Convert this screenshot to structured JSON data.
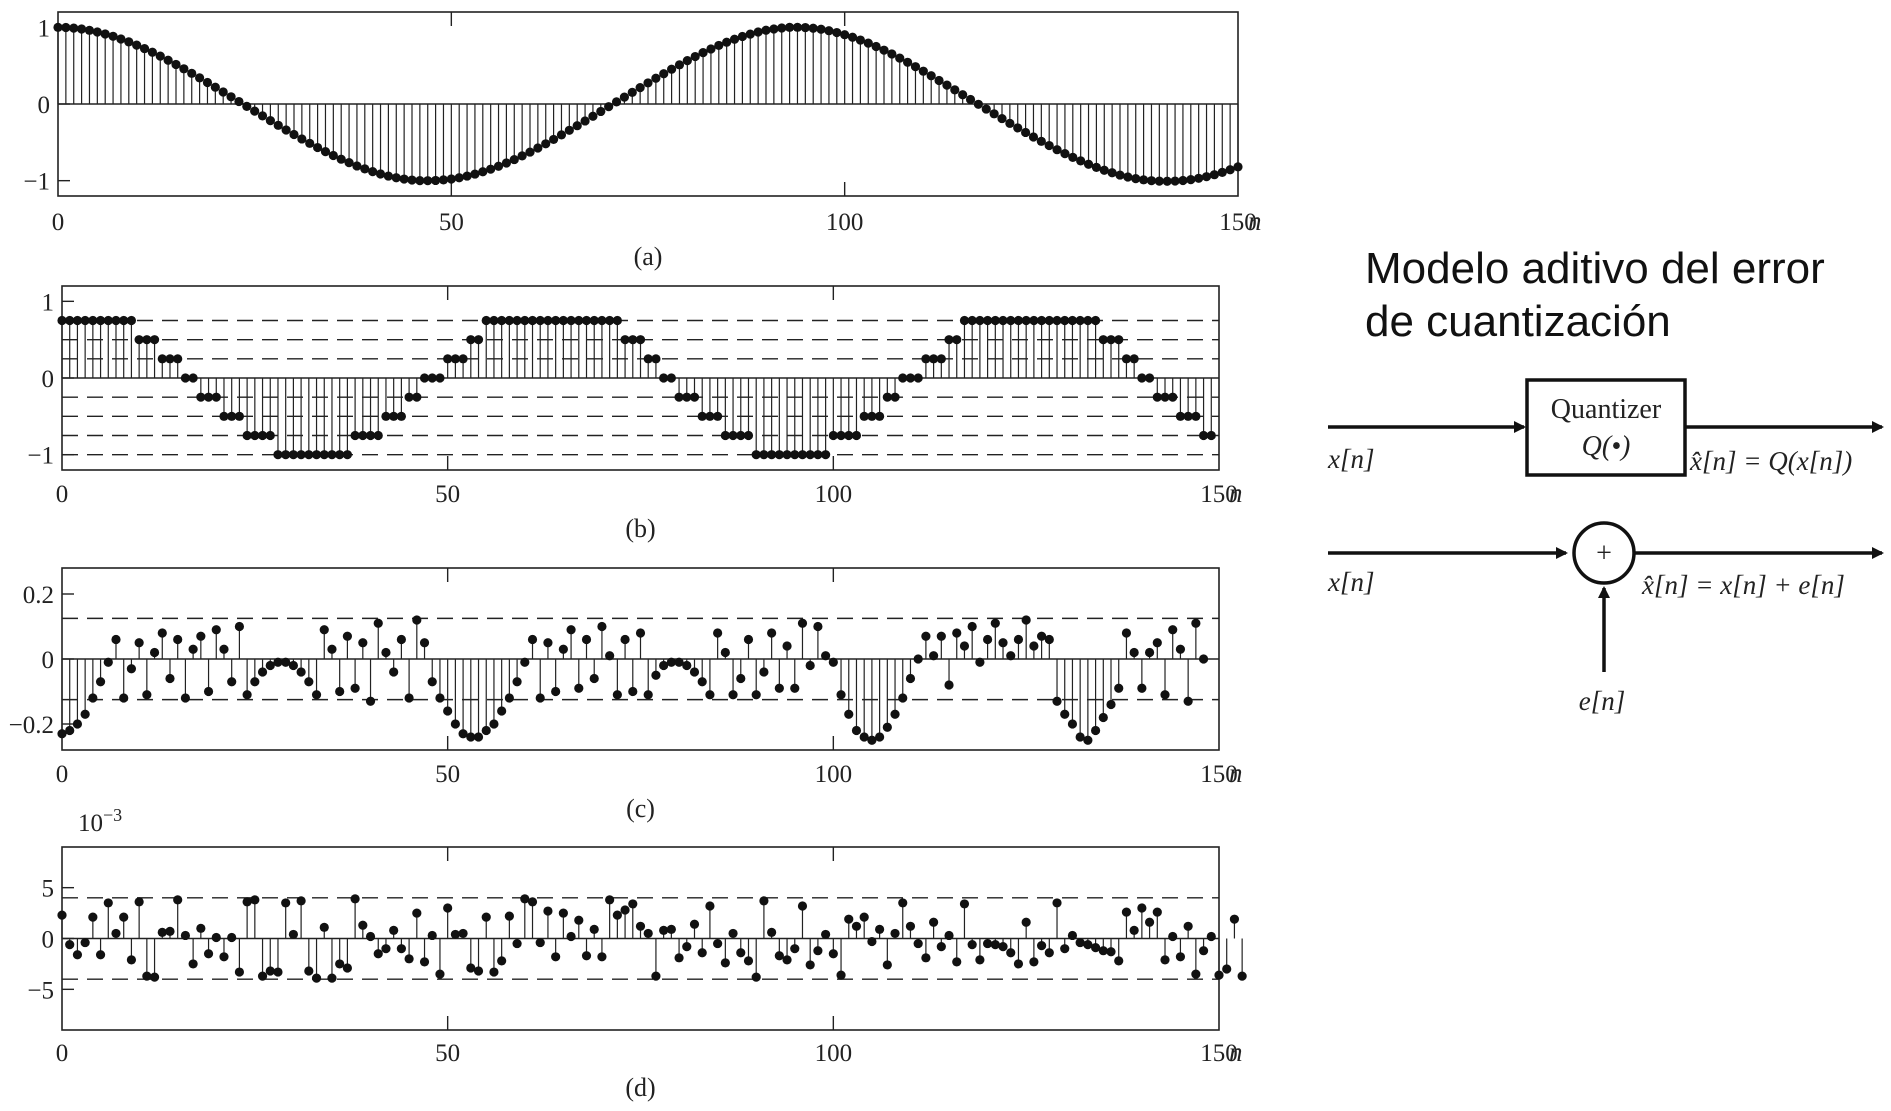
{
  "chart_data": [
    {
      "id": "a",
      "type": "stem",
      "caption": "(a)",
      "xlabel": "n",
      "xlim": [
        0,
        150
      ],
      "ylim": [
        -1.2,
        1.2
      ],
      "xticks": [
        "0",
        "50",
        "100",
        "150"
      ],
      "yticks": [
        {
          "v": 1,
          "label": "1"
        },
        {
          "v": 0,
          "label": "0"
        },
        {
          "v": -1,
          "label": "−1"
        }
      ],
      "dashed_lines": [],
      "exponent_label": "",
      "series": [
        {
          "x_start": 0,
          "values": [
            1,
            0.998,
            0.99,
            0.978,
            0.961,
            0.939,
            0.913,
            0.883,
            0.848,
            0.81,
            0.768,
            0.723,
            0.675,
            0.624,
            0.571,
            0.516,
            0.459,
            0.4,
            0.341,
            0.28,
            0.219,
            0.157,
            0.094,
            0.032,
            -0.031,
            -0.093,
            -0.155,
            -0.217,
            -0.278,
            -0.339,
            -0.398,
            -0.456,
            -0.513,
            -0.568,
            -0.621,
            -0.672,
            -0.72,
            -0.765,
            -0.808,
            -0.846,
            -0.882,
            -0.913,
            -0.94,
            -0.962,
            -0.979,
            -0.992,
            -0.999,
            -1,
            -0.997,
            -0.99,
            -0.978,
            -0.962,
            -0.94,
            -0.914,
            -0.884,
            -0.85,
            -0.812,
            -0.77,
            -0.725,
            -0.677,
            -0.627,
            -0.574,
            -0.519,
            -0.462,
            -0.403,
            -0.343,
            -0.283,
            -0.221,
            -0.16,
            -0.097,
            -0.035,
            0.028,
            0.09,
            0.152,
            0.214,
            0.275,
            0.336,
            0.395,
            0.454,
            0.511,
            0.566,
            0.619,
            0.67,
            0.718,
            0.764,
            0.806,
            0.845,
            0.881,
            0.912,
            0.939,
            0.962,
            0.979,
            0.992,
            0.999,
            1,
            0.997,
            0.988,
            0.975,
            0.956,
            0.932,
            0.904,
            0.871,
            0.834,
            0.794,
            0.75,
            0.702,
            0.652,
            0.599,
            0.544,
            0.487,
            0.428,
            0.368,
            0.307,
            0.246,
            0.184,
            0.121,
            0.059,
            -0.004,
            -0.066,
            -0.128,
            -0.19,
            -0.252,
            -0.312,
            -0.371,
            -0.43,
            -0.487,
            -0.542,
            -0.596,
            -0.647,
            -0.696,
            -0.742,
            -0.786,
            -0.827,
            -0.864,
            -0.897,
            -0.927,
            -0.952,
            -0.973,
            -0.989,
            -1,
            -1.006,
            -1.008,
            -1.005,
            -0.998,
            -0.986,
            -0.969,
            -0.948,
            -0.922,
            -0.892,
            -0.858,
            -0.82
          ]
        }
      ]
    },
    {
      "id": "b",
      "type": "stem",
      "caption": "(b)",
      "xlabel": "n",
      "xlim": [
        0,
        150
      ],
      "ylim": [
        -1.2,
        1.2
      ],
      "xticks": [
        "0",
        "50",
        "100",
        "150"
      ],
      "yticks": [
        {
          "v": 1,
          "label": "1"
        },
        {
          "v": 0,
          "label": "0"
        },
        {
          "v": -1,
          "label": "−1"
        }
      ],
      "dashed_lines": [
        0.75,
        0.5,
        0.25,
        -0.25,
        -0.5,
        -0.75,
        -1
      ],
      "exponent_label": "",
      "series": [
        {
          "x_start": 0,
          "values": [
            0.75,
            0.75,
            0.75,
            0.75,
            0.75,
            0.75,
            0.75,
            0.75,
            0.75,
            0.75,
            0.5,
            0.5,
            0.5,
            0.25,
            0.25,
            0.25,
            0,
            0,
            -0.25,
            -0.25,
            -0.25,
            -0.5,
            -0.5,
            -0.5,
            -0.75,
            -0.75,
            -0.75,
            -0.75,
            -1,
            -1,
            -1,
            -1,
            -1,
            -1,
            -1,
            -1,
            -1,
            -1,
            -0.75,
            -0.75,
            -0.75,
            -0.75,
            -0.5,
            -0.5,
            -0.5,
            -0.25,
            -0.25,
            0,
            0,
            0,
            0.25,
            0.25,
            0.25,
            0.5,
            0.5,
            0.75,
            0.75,
            0.75,
            0.75,
            0.75,
            0.75,
            0.75,
            0.75,
            0.75,
            0.75,
            0.75,
            0.75,
            0.75,
            0.75,
            0.75,
            0.75,
            0.75,
            0.75,
            0.5,
            0.5,
            0.5,
            0.25,
            0.25,
            0,
            0,
            -0.25,
            -0.25,
            -0.25,
            -0.5,
            -0.5,
            -0.5,
            -0.75,
            -0.75,
            -0.75,
            -0.75,
            -1,
            -1,
            -1,
            -1,
            -1,
            -1,
            -1,
            -1,
            -1,
            -1,
            -0.75,
            -0.75,
            -0.75,
            -0.75,
            -0.5,
            -0.5,
            -0.5,
            -0.25,
            -0.25,
            0,
            0,
            0,
            0.25,
            0.25,
            0.25,
            0.5,
            0.5,
            0.75,
            0.75,
            0.75,
            0.75,
            0.75,
            0.75,
            0.75,
            0.75,
            0.75,
            0.75,
            0.75,
            0.75,
            0.75,
            0.75,
            0.75,
            0.75,
            0.75,
            0.75,
            0.5,
            0.5,
            0.5,
            0.25,
            0.25,
            0,
            0,
            -0.25,
            -0.25,
            -0.25,
            -0.5,
            -0.5,
            -0.5,
            -0.75,
            -0.75
          ]
        }
      ]
    },
    {
      "id": "c",
      "type": "stem",
      "caption": "(c)",
      "xlabel": "n",
      "xlim": [
        0,
        150
      ],
      "ylim": [
        -0.28,
        0.28
      ],
      "xticks": [
        "0",
        "50",
        "100",
        "150"
      ],
      "yticks": [
        {
          "v": 0.2,
          "label": "0.2"
        },
        {
          "v": 0,
          "label": "0"
        },
        {
          "v": -0.2,
          "label": "−0.2"
        }
      ],
      "dashed_lines": [
        0.125,
        -0.125
      ],
      "exponent_label": "",
      "series": [
        {
          "x_start": 0,
          "values": [
            -0.23,
            -0.22,
            -0.2,
            -0.17,
            -0.12,
            -0.07,
            -0.01,
            0.06,
            -0.12,
            -0.03,
            0.05,
            -0.11,
            0.02,
            0.08,
            -0.06,
            0.06,
            -0.12,
            0.03,
            0.07,
            -0.1,
            0.09,
            0.03,
            -0.07,
            0.1,
            -0.11,
            -0.07,
            -0.04,
            -0.02,
            -0.01,
            -0.01,
            -0.02,
            -0.04,
            -0.07,
            -0.11,
            0.09,
            0.03,
            -0.1,
            0.07,
            -0.09,
            0.05,
            -0.13,
            0.11,
            0.02,
            -0.04,
            0.06,
            -0.12,
            0.12,
            0.05,
            -0.07,
            -0.12,
            -0.16,
            -0.2,
            -0.23,
            -0.24,
            -0.24,
            -0.22,
            -0.2,
            -0.16,
            -0.12,
            -0.07,
            -0.01,
            0.06,
            -0.12,
            0.05,
            -0.1,
            0.03,
            0.09,
            -0.09,
            0.06,
            -0.06,
            0.1,
            0.01,
            -0.11,
            0.06,
            -0.1,
            0.08,
            -0.11,
            -0.05,
            -0.02,
            -0.01,
            -0.01,
            -0.02,
            -0.04,
            -0.07,
            -0.11,
            0.08,
            0.02,
            -0.11,
            -0.06,
            0.06,
            -0.11,
            -0.04,
            0.08,
            -0.09,
            0.04,
            -0.09,
            0.11,
            -0.02,
            0.1,
            0.01,
            -0.01,
            -0.11,
            -0.17,
            -0.22,
            -0.24,
            -0.25,
            -0.24,
            -0.21,
            -0.17,
            -0.12,
            -0.06,
            0,
            0.07,
            0.01,
            0.07,
            -0.08,
            0.08,
            0.04,
            0.1,
            -0.01,
            0.06,
            0.11,
            0.05,
            0.01,
            0.06,
            0.12,
            0.04,
            0.07,
            0.06,
            -0.13,
            -0.17,
            -0.2,
            -0.24,
            -0.25,
            -0.22,
            -0.18,
            -0.14,
            -0.09,
            0.08,
            0.02,
            -0.09,
            0.02,
            0.05,
            -0.11,
            0.09,
            0.03,
            -0.13,
            0.11,
            0
          ]
        }
      ]
    },
    {
      "id": "d",
      "type": "stem",
      "caption": "(d)",
      "xlabel": "n",
      "xlim": [
        0,
        150
      ],
      "ylim": [
        -9,
        9
      ],
      "xticks": [
        "0",
        "50",
        "100",
        "150"
      ],
      "yticks": [
        {
          "v": 5,
          "label": "5"
        },
        {
          "v": 0,
          "label": "0"
        },
        {
          "v": -5,
          "label": "−5"
        }
      ],
      "dashed_lines": [
        4,
        -4
      ],
      "exponent_label": "10−3",
      "series": [
        {
          "x_start": 0,
          "values": [
            2.3,
            -0.6,
            -1.6,
            -0.4,
            2.1,
            -1.6,
            3.5,
            0.5,
            2.1,
            -2.1,
            3.6,
            -3.7,
            -3.8,
            0.6,
            0.7,
            3.8,
            0.3,
            -2.5,
            1,
            -1.5,
            0.1,
            -1.8,
            0.1,
            -3.3,
            3.6,
            3.8,
            -3.7,
            -3.2,
            -3.3,
            3.5,
            0.4,
            3.7,
            -3.2,
            -3.9,
            1.1,
            -3.9,
            -2.5,
            -2.9,
            3.9,
            1.3,
            0.2,
            -1.5,
            -1,
            0.8,
            -1,
            -2,
            2.5,
            -2.3,
            0.3,
            -3.5,
            3,
            0.4,
            0.5,
            -2.9,
            -3.2,
            2.1,
            -3.3,
            -2.2,
            2.2,
            -0.5,
            3.9,
            3.6,
            -0.4,
            2.7,
            -1.8,
            2.5,
            0.2,
            1.8,
            -1.7,
            0.9,
            -1.8,
            3.8,
            2.3,
            2.8,
            3.4,
            1.2,
            0.5,
            -3.7,
            0.8,
            0.9,
            -1.9,
            -0.8,
            1.4,
            -1.4,
            3.2,
            -0.5,
            -2.4,
            0.5,
            -1.4,
            -2.2,
            -3.8,
            3.7,
            0.6,
            -1.7,
            -2.1,
            -1,
            3.2,
            -2.6,
            -1.2,
            0.4,
            -1.5,
            -3.6,
            1.9,
            1.2,
            2.1,
            -0.3,
            0.9,
            -2.6,
            0.5,
            3.5,
            1.2,
            -0.5,
            -1.9,
            1.6,
            -0.8,
            0.3,
            -2.3,
            3.4,
            -0.6,
            -2.1,
            -0.5,
            -0.6,
            -0.8,
            -1.4,
            -2.5,
            1.6,
            -2.3,
            -0.7,
            -1.4,
            3.5,
            -1,
            0.3,
            -0.4,
            -0.6,
            -0.9,
            -1.2,
            -1.3,
            -2.2,
            2.6,
            0.8,
            3,
            1.6,
            2.6,
            -2.1,
            0.2,
            -1.8,
            1.2,
            -3.5,
            -1.2,
            0.2,
            -3.6,
            -3,
            1.9,
            -3.7
          ]
        }
      ]
    }
  ],
  "diagram": {
    "title_line1": "Modelo aditivo del error",
    "title_line2": "de cuantización",
    "quantizer_label_line1": "Quantizer",
    "quantizer_label_line2": "Q(•)",
    "top_input_label": "x[n]",
    "top_output_label": "x̂[n] = Q(x[n])",
    "adder_symbol": "+",
    "bottom_input_label": "x[n]",
    "bottom_output_label": "x̂[n] = x[n] + e[n]",
    "error_label": "e[n]"
  }
}
